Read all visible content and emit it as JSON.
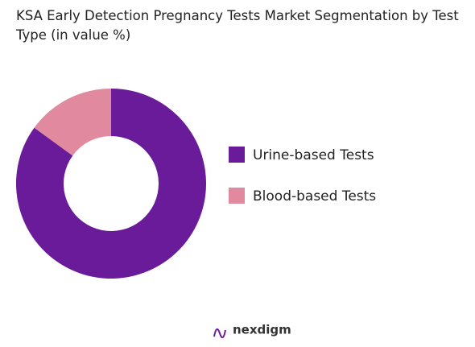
{
  "chart_data": {
    "type": "pie",
    "title": "KSA Early Detection Pregnancy Tests Market Segmentation by Test Type (in value %)",
    "categories": [
      "Urine-based Tests",
      "Blood-based Tests"
    ],
    "values": [
      85,
      15
    ],
    "colors": [
      "#6a1b9a",
      "#e0899f"
    ],
    "donut": true,
    "legend": "right"
  },
  "brand": "nexdigm"
}
